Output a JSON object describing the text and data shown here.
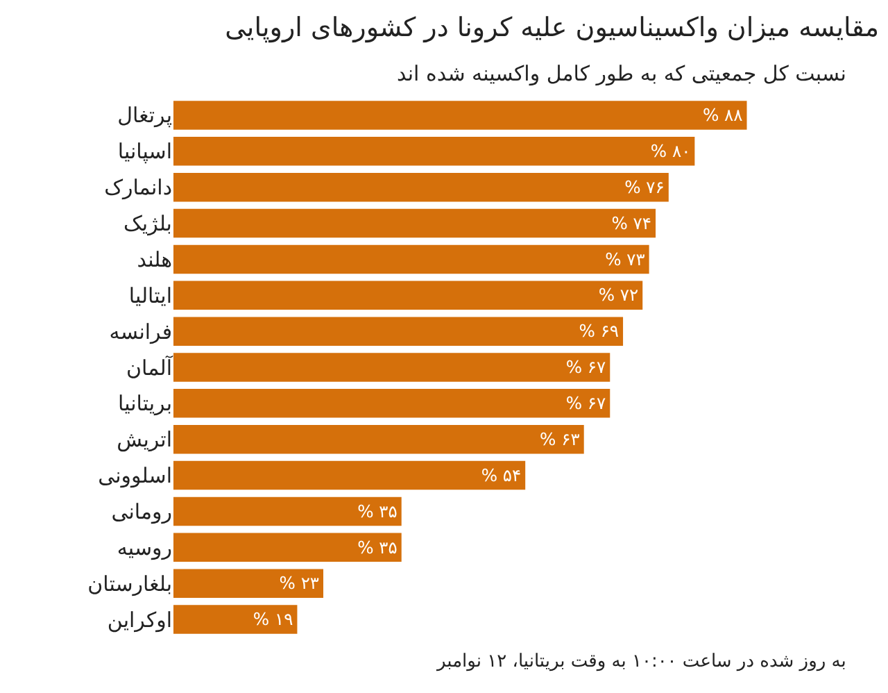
{
  "chart_data": {
    "type": "bar",
    "orientation": "horizontal",
    "title": "مقایسه میزان واکسیناسیون علیه کرونا در کشورهای اروپایی",
    "subtitle": "نسبت کل جمعیتی که به طور کامل واکسینه شده اند",
    "categories": [
      "پرتغال",
      "اسپانیا",
      "دانمارک",
      "بلژیک",
      "هلند",
      "ایتالیا",
      "فرانسه",
      "آلمان",
      "بریتانیا",
      "اتریش",
      "اسلوونی",
      "رومانی",
      "روسیه",
      "بلغارستان",
      "اوکراین"
    ],
    "values": [
      88,
      80,
      76,
      74,
      73,
      72,
      69,
      67,
      67,
      63,
      54,
      35,
      35,
      23,
      19
    ],
    "value_labels": [
      "% ۸۸",
      "% ۸۰",
      "% ۷۶",
      "% ۷۴",
      "% ۷۳",
      "% ۷۲",
      "% ۶۹",
      "% ۶۷",
      "% ۶۷",
      "% ۶۳",
      "% ۵۴",
      "% ۳۵",
      "% ۳۵",
      "% ۲۳",
      "% ۱۹"
    ],
    "color": "#d5700b",
    "annotations": [
      "به روز شده در ساعت ۱۰:۰۰ به وقت بریتانیا، ۱۲ نوامبر"
    ]
  }
}
